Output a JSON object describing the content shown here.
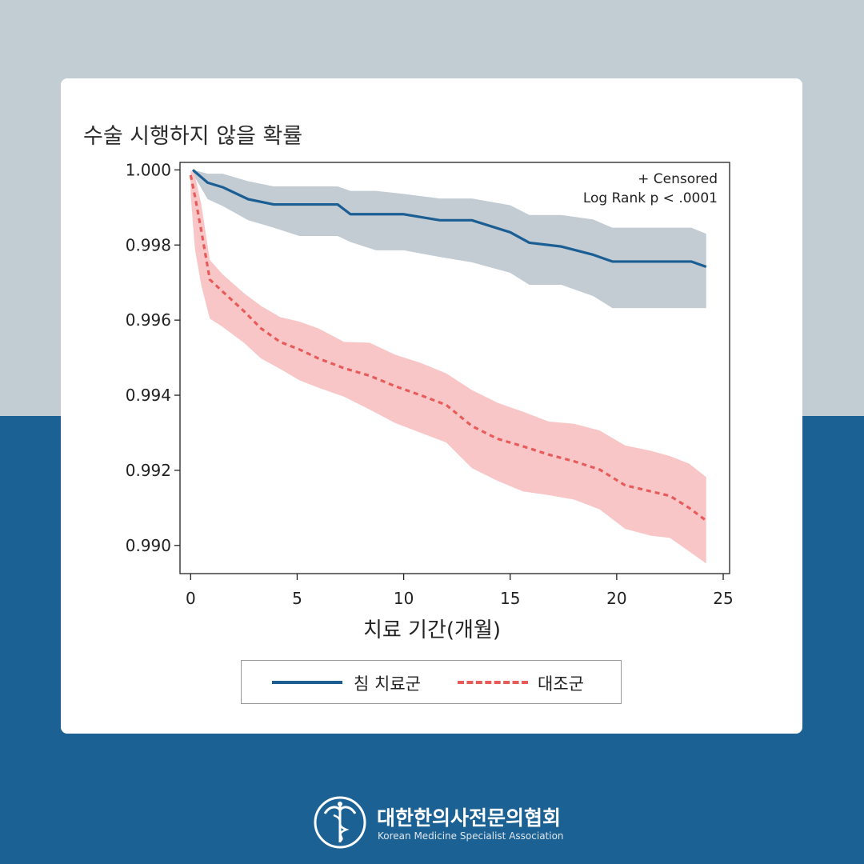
{
  "card": {
    "title": "수술 시행하지 않을 확률"
  },
  "chart_data": {
    "type": "line",
    "title": "수술 시행하지 않을 확률",
    "xlabel": "치료 기간(개월)",
    "ylabel": "",
    "xlim": [
      -0.5,
      25.3
    ],
    "ylim": [
      0.98925,
      1.0002
    ],
    "x_ticks": [
      0,
      5,
      10,
      15,
      20,
      25
    ],
    "x_tick_labels": [
      "0",
      "5",
      "10",
      "15",
      "20",
      "25"
    ],
    "y_ticks": [
      1.0,
      0.998,
      0.996,
      0.994,
      0.992,
      0.99
    ],
    "y_tick_labels": [
      "1.000",
      "0.998",
      "0.996",
      "0.994",
      "0.992",
      "0.990"
    ],
    "annotations": [
      "+ Censored",
      "Log Rank p < .0001"
    ],
    "legend_position": "bottom",
    "series": [
      {
        "name": "침 치료군",
        "color": "#1b5e94",
        "band_color": "#c3ccd3",
        "style": "solid",
        "x": [
          0.1,
          0.8,
          1.5,
          2.7,
          3.9,
          5.1,
          6.9,
          7.5,
          8.7,
          10.0,
          11.7,
          13.2,
          15.0,
          15.9,
          17.4,
          18.9,
          19.8,
          21.0,
          22.8,
          23.5,
          24.2
        ],
        "values": [
          1.0,
          0.99966,
          0.99954,
          0.99922,
          0.99908,
          0.99908,
          0.99908,
          0.99882,
          0.99882,
          0.99882,
          0.99866,
          0.99866,
          0.99834,
          0.99806,
          0.99796,
          0.99774,
          0.99756,
          0.99756,
          0.99756,
          0.99756,
          0.99742
        ],
        "lower": [
          0.9999,
          0.99922,
          0.99904,
          0.99866,
          0.99846,
          0.99824,
          0.99824,
          0.99808,
          0.99786,
          0.99786,
          0.99768,
          0.99754,
          0.99726,
          0.99694,
          0.99694,
          0.99664,
          0.99632,
          0.99632,
          0.99632,
          0.99632,
          0.99632
        ],
        "upper": [
          1.0,
          0.9999,
          0.9999,
          0.9997,
          0.99956,
          0.99956,
          0.99956,
          0.99944,
          0.99944,
          0.99936,
          0.99924,
          0.99924,
          0.99906,
          0.9988,
          0.9988,
          0.99868,
          0.99846,
          0.99846,
          0.99846,
          0.99846,
          0.9983
        ]
      },
      {
        "name": "대조군",
        "color": "#e85b5b",
        "band_color": "#f8c6c7",
        "style": "dashed",
        "x": [
          0.0,
          0.2,
          0.5,
          0.9,
          1.5,
          2.5,
          3.3,
          4.2,
          5.1,
          6.0,
          7.2,
          8.4,
          9.6,
          10.8,
          12.0,
          13.2,
          14.4,
          15.6,
          16.8,
          18.0,
          19.2,
          20.4,
          21.6,
          22.5,
          23.4,
          24.2
        ],
        "values": [
          0.99986,
          0.9993,
          0.99838,
          0.99708,
          0.99676,
          0.99624,
          0.99578,
          0.99542,
          0.99522,
          0.99498,
          0.99472,
          0.99452,
          0.99424,
          0.994,
          0.99374,
          0.99318,
          0.99284,
          0.99264,
          0.99242,
          0.99224,
          0.99202,
          0.9916,
          0.99144,
          0.99132,
          0.991,
          0.99066
        ],
        "lower": [
          0.99934,
          0.9979,
          0.99692,
          0.99604,
          0.99582,
          0.9954,
          0.99498,
          0.9947,
          0.9944,
          0.9942,
          0.99396,
          0.99362,
          0.99326,
          0.993,
          0.99274,
          0.99206,
          0.99172,
          0.99144,
          0.99134,
          0.99122,
          0.99096,
          0.99044,
          0.99026,
          0.9902,
          0.98984,
          0.98952
        ],
        "upper": [
          1.0,
          0.99986,
          0.99908,
          0.9976,
          0.99722,
          0.99672,
          0.99638,
          0.99608,
          0.99596,
          0.99578,
          0.99542,
          0.9954,
          0.99508,
          0.99486,
          0.99458,
          0.99414,
          0.9938,
          0.99356,
          0.9933,
          0.99324,
          0.99306,
          0.99266,
          0.99252,
          0.99238,
          0.99218,
          0.99182
        ]
      }
    ]
  },
  "legend": {
    "items": [
      {
        "label": "침 치료군",
        "style": "solid",
        "color": "#1b5e94"
      },
      {
        "label": "대조군",
        "style": "dashed",
        "color": "#e85b5b"
      }
    ]
  },
  "footer": {
    "org_name": "대한한의사전문의협회",
    "org_name_en": "Korean Medicine Specialist Association",
    "logo_icon": "caduceus-icon"
  }
}
